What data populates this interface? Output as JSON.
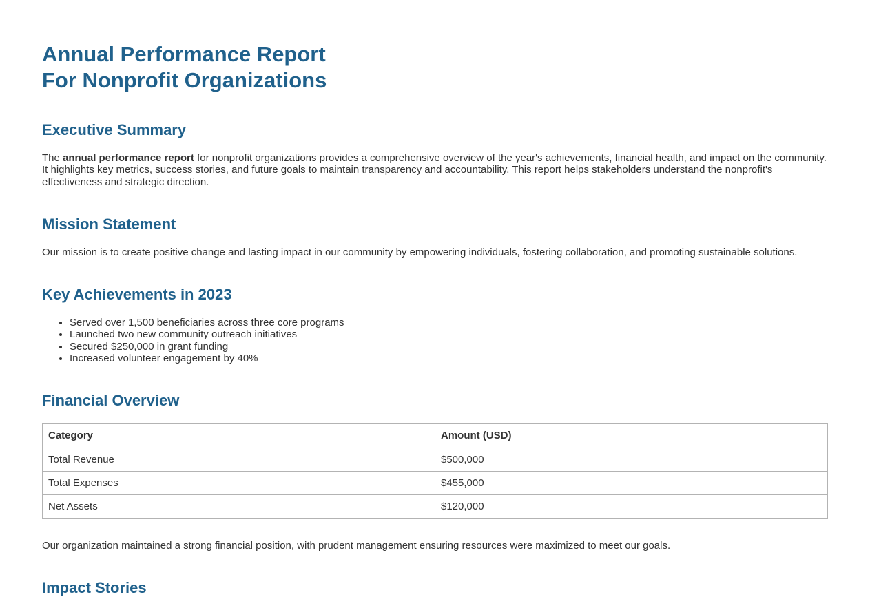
{
  "colors": {
    "heading": "#20618C",
    "body_text": "#333333",
    "table_border": "#b3b3b3",
    "background": "#ffffff"
  },
  "page": {
    "title_line1": "Annual Performance Report",
    "title_line2": "For Nonprofit Organizations"
  },
  "sections": {
    "executive_summary": {
      "heading": "Executive Summary",
      "paragraph_lead": "The ",
      "paragraph_bold": "annual performance report",
      "paragraph_rest": " for nonprofit organizations provides a comprehensive overview of the year's achievements, financial health, and impact on the community. It highlights key metrics, success stories, and future goals to maintain transparency and accountability. This report helps stakeholders understand the nonprofit's effectiveness and strategic direction."
    },
    "mission_statement": {
      "heading": "Mission Statement",
      "paragraph": "Our mission is to create positive change and lasting impact in our community by empowering individuals, fostering collaboration, and promoting sustainable solutions."
    },
    "key_achievements": {
      "heading": "Key Achievements in 2023",
      "items": [
        "Served over 1,500 beneficiaries across three core programs",
        "Launched two new community outreach initiatives",
        "Secured $250,000 in grant funding",
        "Increased volunteer engagement by 40%"
      ]
    },
    "financial_overview": {
      "heading": "Financial Overview",
      "table": {
        "headers": [
          "Category",
          "Amount (USD)"
        ],
        "rows": [
          [
            "Total Revenue",
            "$500,000"
          ],
          [
            "Total Expenses",
            "$455,000"
          ],
          [
            "Net Assets",
            "$120,000"
          ]
        ]
      },
      "note": "Our organization maintained a strong financial position, with prudent management ensuring resources were maximized to meet our goals."
    },
    "impact_stories": {
      "heading": "Impact Stories"
    }
  }
}
